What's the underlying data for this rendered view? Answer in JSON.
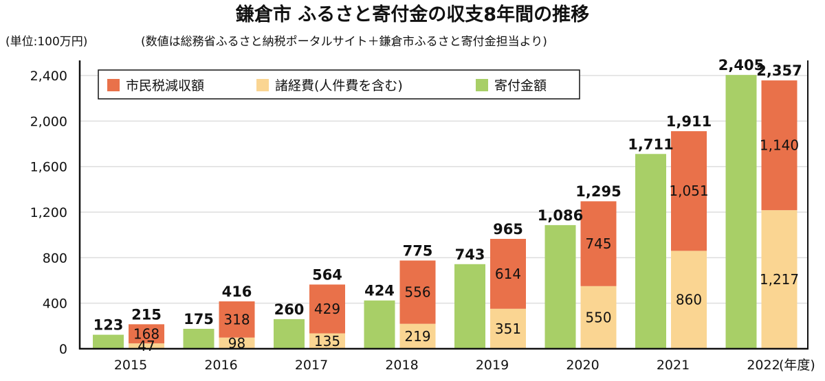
{
  "chart_data": {
    "type": "bar",
    "title": "鎌倉市 ふるさと寄付金の収支8年間の推移",
    "unit_note": "(単位:100万円)",
    "source_note": "(数値は総務省ふるさと納税ポータルサイト＋鎌倉市ふるさと寄付金担当より)",
    "xlabel": "(年度)",
    "ylabel": "",
    "ylim": [
      0,
      2400
    ],
    "yticks": [
      "0",
      "400",
      "800",
      "1,200",
      "1,600",
      "2,000",
      "2,400"
    ],
    "ytick_values": [
      0,
      400,
      800,
      1200,
      1600,
      2000,
      2400
    ],
    "grid": true,
    "legend_position": "top-left",
    "categories": [
      "2015",
      "2016",
      "2017",
      "2018",
      "2019",
      "2020",
      "2021",
      "2022"
    ],
    "series": [
      {
        "name": "市民税減収額",
        "color": "#e9714a",
        "stack": "cost",
        "values": [
          168,
          318,
          429,
          556,
          614,
          745,
          1051,
          1140
        ],
        "labels": [
          "168",
          "318",
          "429",
          "556",
          "614",
          "745",
          "1,051",
          "1,140"
        ]
      },
      {
        "name": "諸経費(人件費を含む)",
        "color": "#fad592",
        "stack": "cost",
        "values": [
          47,
          98,
          135,
          219,
          351,
          550,
          860,
          1217
        ],
        "labels": [
          "47",
          "98",
          "135",
          "219",
          "351",
          "550",
          "860",
          "1,217"
        ]
      },
      {
        "name": "寄付金額",
        "color": "#a8cf67",
        "stack": "donation",
        "values": [
          123,
          175,
          260,
          424,
          743,
          1086,
          1711,
          2405
        ],
        "labels": [
          "123",
          "175",
          "260",
          "424",
          "743",
          "1,086",
          "1,711",
          "2,405"
        ]
      }
    ],
    "cost_totals": [
      215,
      416,
      564,
      775,
      965,
      1295,
      1911,
      2357
    ],
    "cost_total_labels": [
      "215",
      "416",
      "564",
      "775",
      "965",
      "1,295",
      "1,911",
      "2,357"
    ]
  }
}
